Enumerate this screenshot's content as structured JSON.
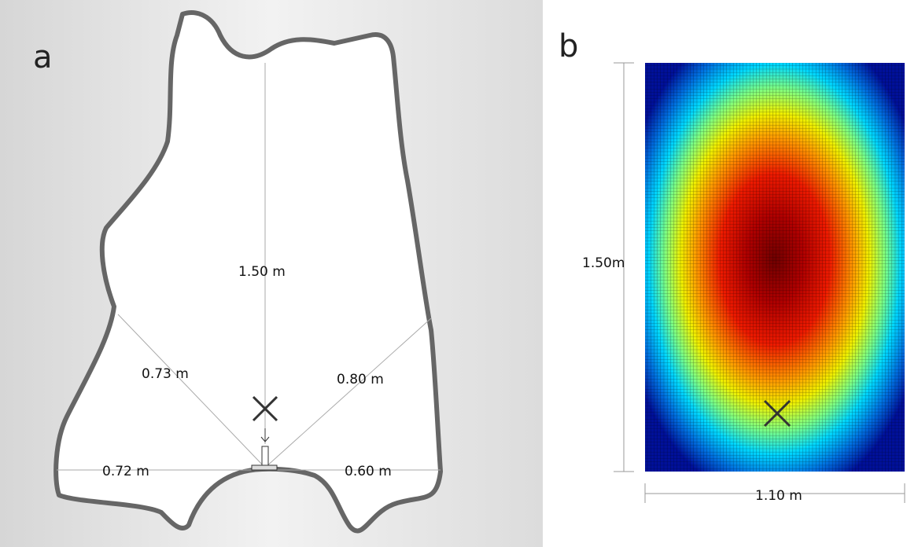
{
  "panel_a": {
    "label": "a",
    "vertical": "1.50 m",
    "left_diagonal": "0.73 m",
    "right_diagonal": "0.80 m",
    "left_base": "0.72 m",
    "right_base": "0.60 m"
  },
  "panel_b": {
    "label": "b",
    "height": "1.50m",
    "width": "1.10 m"
  }
}
